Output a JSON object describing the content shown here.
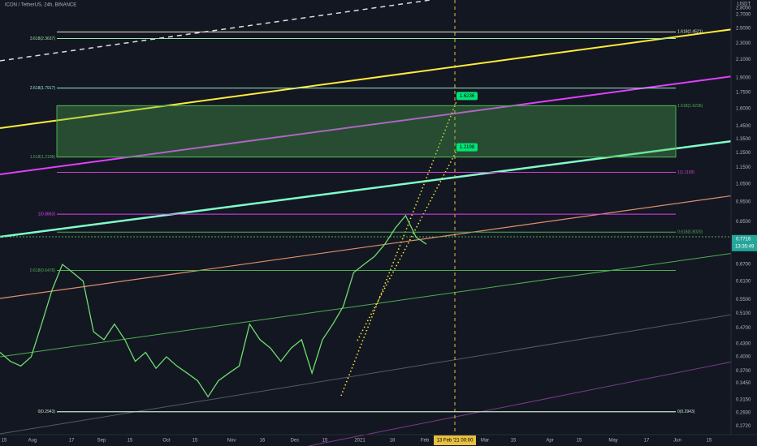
{
  "header": {
    "title": "ICON / TetherUS, 24h, BINANCE",
    "currency": "USDT"
  },
  "price_axis": {
    "ylim": [
      0.259,
      2.93
    ],
    "log": true,
    "ticks": [
      {
        "value": 2.8,
        "label": "2.8000"
      },
      {
        "value": 2.7,
        "label": "2.7000"
      },
      {
        "value": 2.5,
        "label": "2.5000"
      },
      {
        "value": 2.3,
        "label": "2.3000"
      },
      {
        "value": 2.1,
        "label": "2.1000"
      },
      {
        "value": 1.9,
        "label": "1.9000"
      },
      {
        "value": 1.75,
        "label": "1.7500"
      },
      {
        "value": 1.6,
        "label": "1.6000"
      },
      {
        "value": 1.45,
        "label": "1.4500"
      },
      {
        "value": 1.35,
        "label": "1.3500"
      },
      {
        "value": 1.25,
        "label": "1.2500"
      },
      {
        "value": 1.15,
        "label": "1.1500"
      },
      {
        "value": 1.05,
        "label": "1.0500"
      },
      {
        "value": 0.95,
        "label": "0.9500"
      },
      {
        "value": 0.85,
        "label": "0.8500"
      },
      {
        "value": 0.67,
        "label": "0.6700"
      },
      {
        "value": 0.61,
        "label": "0.6100"
      },
      {
        "value": 0.55,
        "label": "0.5500"
      },
      {
        "value": 0.51,
        "label": "0.5100"
      },
      {
        "value": 0.47,
        "label": "0.4700"
      },
      {
        "value": 0.43,
        "label": "0.4300"
      },
      {
        "value": 0.4,
        "label": "0.4000"
      },
      {
        "value": 0.37,
        "label": "0.3700"
      },
      {
        "value": 0.345,
        "label": "0.3450"
      },
      {
        "value": 0.315,
        "label": "0.3150"
      },
      {
        "value": 0.293,
        "label": "0.2930"
      },
      {
        "value": 0.272,
        "label": "0.2720"
      }
    ],
    "last": {
      "value": 0.7716,
      "label": "0.7716"
    },
    "countdown": "13:35:49"
  },
  "time_axis": {
    "labels": [
      "15",
      "Aug",
      "17",
      "Sep",
      "15",
      "Oct",
      "15",
      "Nov",
      "16",
      "Dec",
      "15",
      "2021",
      "18",
      "Feb",
      "Mar",
      "15",
      "Apr",
      "15",
      "May",
      "17",
      "Jun",
      "15"
    ],
    "cursor": "13 Feb '21  00:00"
  },
  "levels": [
    {
      "label": "1.618(2.4521)",
      "value": 2.4521,
      "side": "right",
      "color": "#e8e8c8"
    },
    {
      "label": "3.618(2.3637)",
      "value": 2.3637,
      "side": "left",
      "color": "#9be89b"
    },
    {
      "label": "2.618(1.7917)",
      "value": 1.7917,
      "side": "left",
      "color": "#9be8c8"
    },
    {
      "label": "1.618(1.6236)",
      "value": 1.6236,
      "side": "right",
      "color": "#4caf50"
    },
    {
      "label": "1.618(1.2198)",
      "value": 1.2198,
      "side": "left",
      "color": "#4caf50"
    },
    {
      "label": "1(1.1199)",
      "value": 1.1199,
      "side": "right",
      "color": "#d040d0"
    },
    {
      "label": "1(0.8863)",
      "value": 0.8863,
      "side": "left",
      "color": "#e040fb"
    },
    {
      "label": "0.618(0.8020)",
      "value": 0.802,
      "side": "right",
      "color": "#4caf50"
    },
    {
      "label": "0.618(0.6478)",
      "value": 0.6478,
      "side": "left",
      "color": "#4caf50"
    },
    {
      "label": "0(0.2943)",
      "value": 0.2943,
      "side": "left",
      "color": "#c8e8c8"
    },
    {
      "label": "0(0.2943)",
      "value": 0.2943,
      "side": "right",
      "color": "#c8e8c8"
    }
  ],
  "zone": {
    "top": 1.6236,
    "bottom": 1.2198
  },
  "targets": [
    {
      "label": "1.6236",
      "value": 1.6236
    },
    {
      "label": "1.2198",
      "value": 1.2198
    }
  ],
  "price": {
    "values": [
      0.41,
      0.39,
      0.38,
      0.4,
      0.48,
      0.58,
      0.67,
      0.64,
      0.61,
      0.46,
      0.44,
      0.48,
      0.44,
      0.39,
      0.41,
      0.375,
      0.4,
      0.38,
      0.365,
      0.35,
      0.32,
      0.35,
      0.365,
      0.38,
      0.48,
      0.44,
      0.42,
      0.39,
      0.42,
      0.44,
      0.365,
      0.44,
      0.48,
      0.53,
      0.64,
      0.67,
      0.7,
      0.75,
      0.82,
      0.88,
      0.78,
      0.75
    ]
  }
}
